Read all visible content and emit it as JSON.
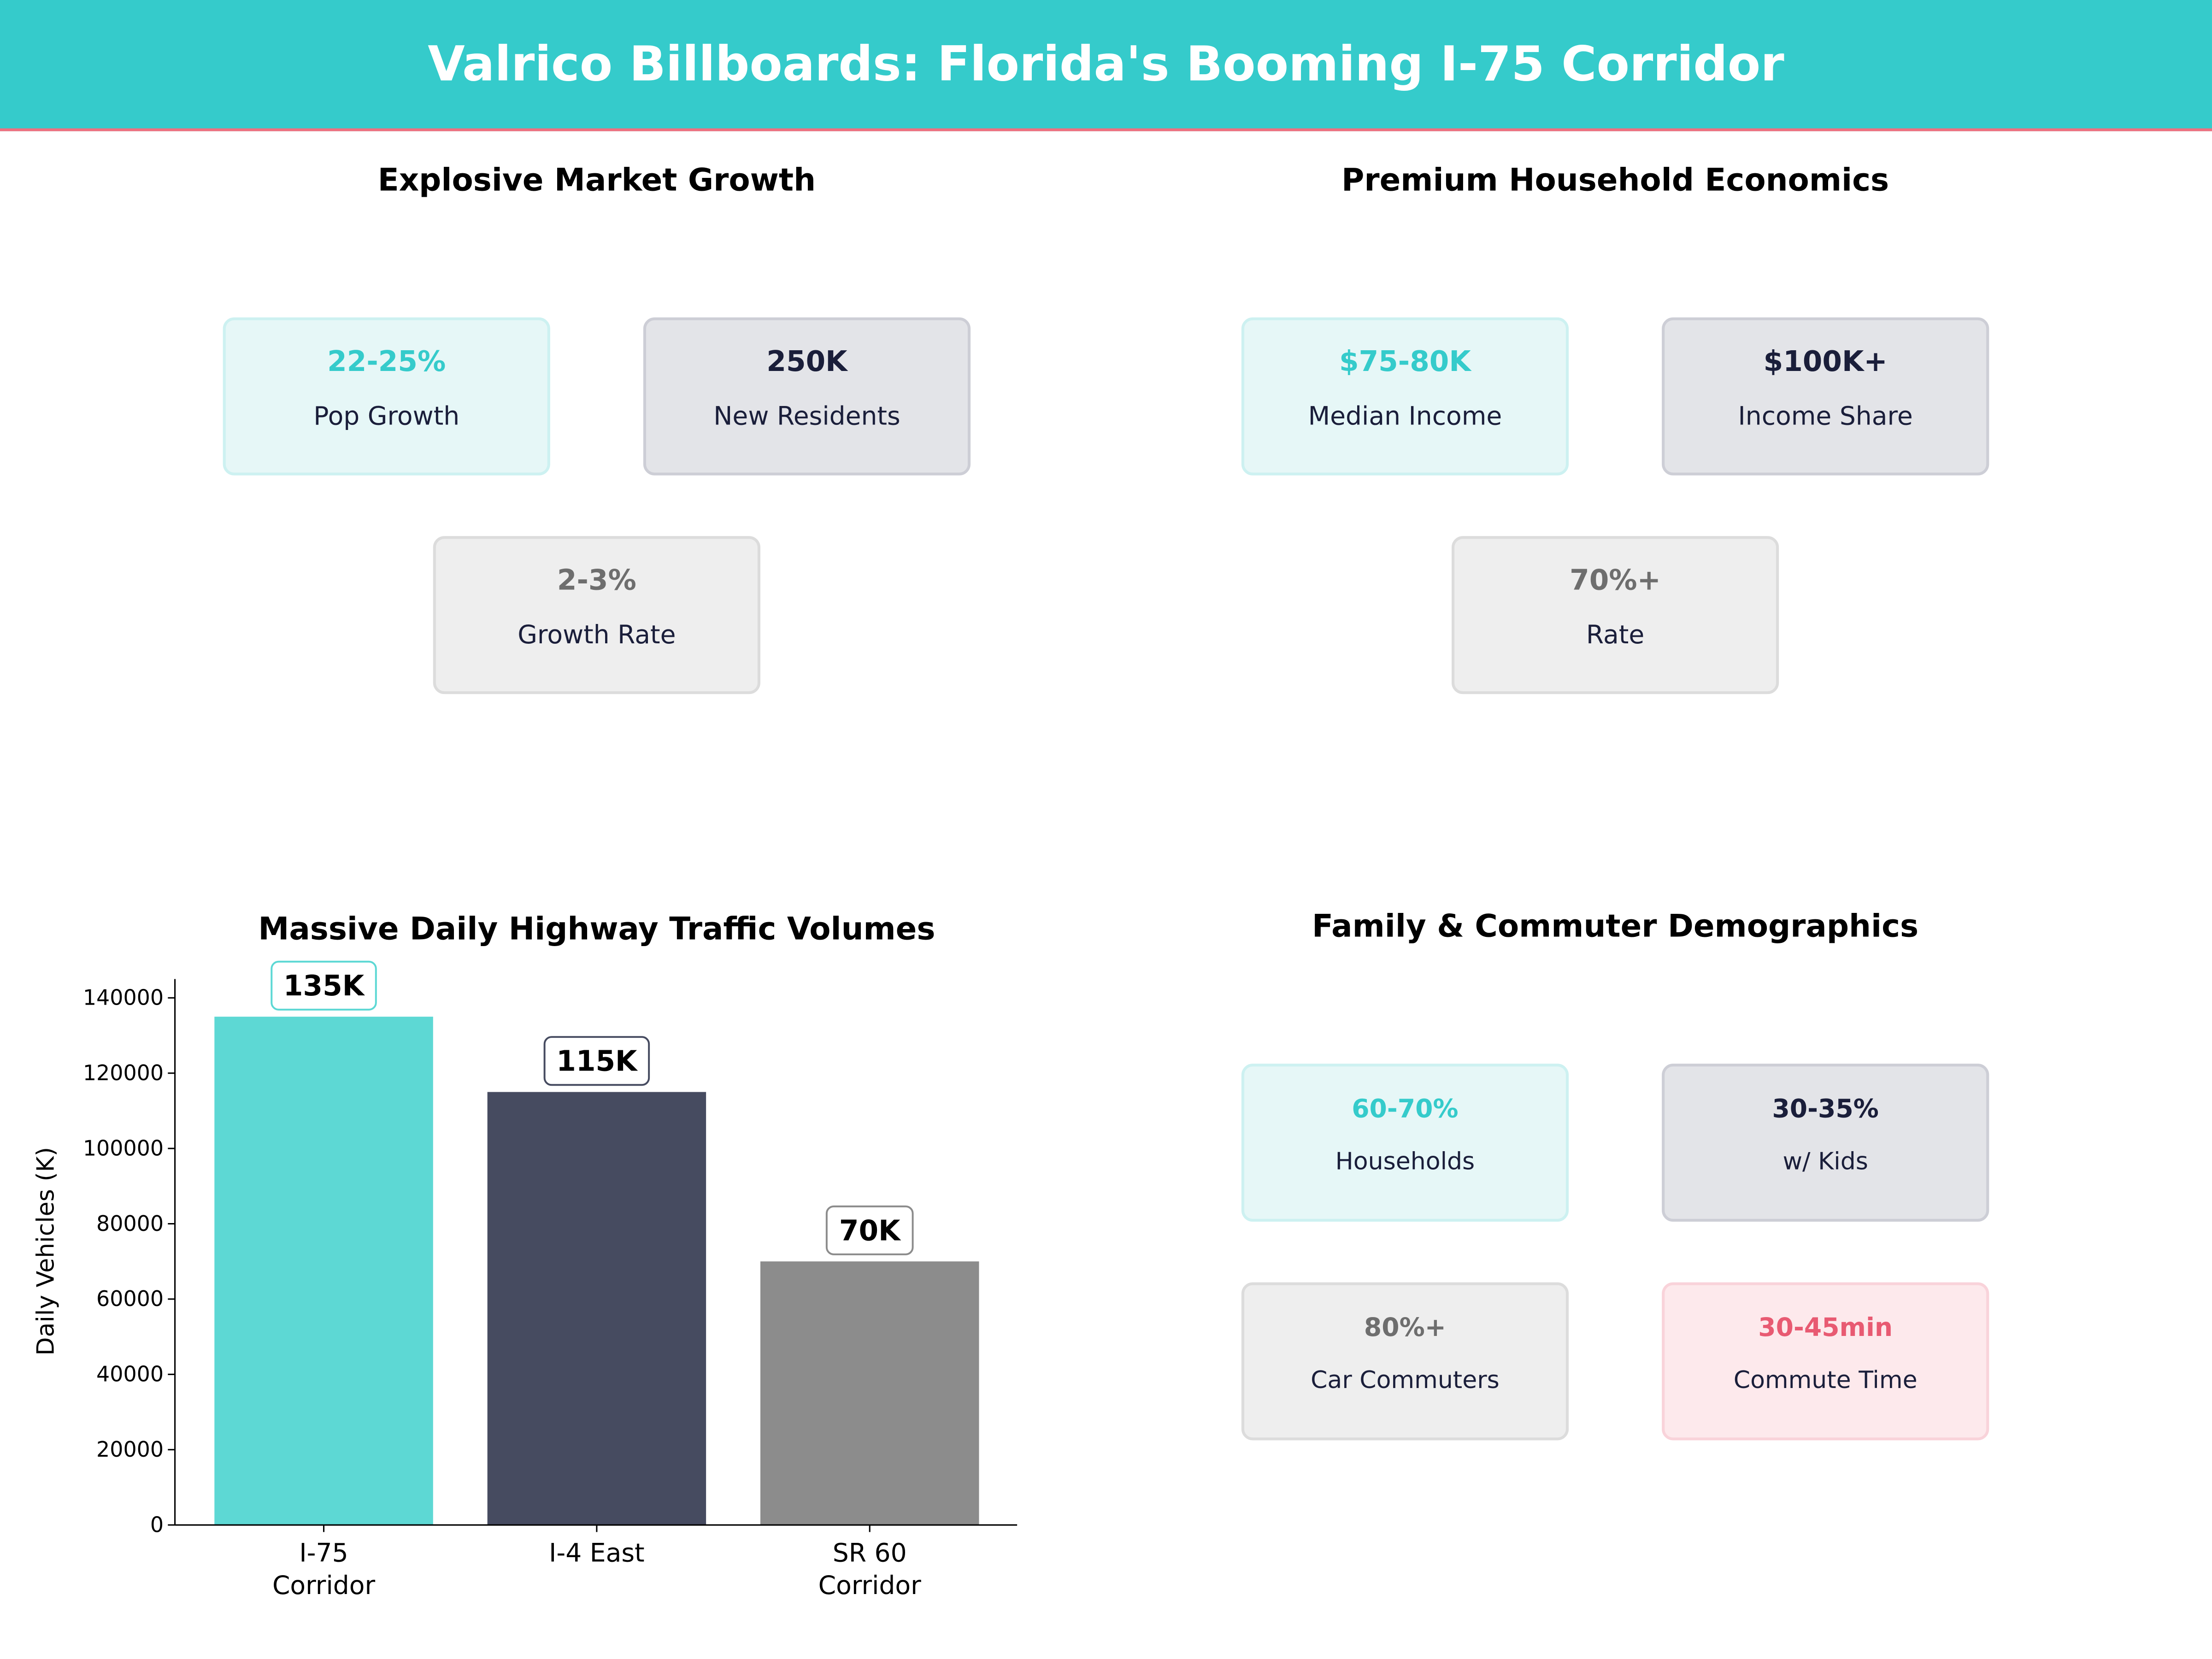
{
  "header": {
    "title": "Valrico Billboards: Florida's Booming I-75 Corridor"
  },
  "panels": {
    "growth": {
      "title": "Explosive Market Growth",
      "cards": [
        {
          "value": "22-25%",
          "label": "Pop Growth",
          "style": "teal"
        },
        {
          "value": "250K",
          "label": "New Residents",
          "style": "navy"
        },
        {
          "value": "2-3%",
          "label": "Growth Rate",
          "style": "gray"
        }
      ]
    },
    "economics": {
      "title": "Premium Household Economics",
      "cards": [
        {
          "value": "$75-80K",
          "label": "Median Income",
          "style": "teal"
        },
        {
          "value": "$100K+",
          "label": "Income Share",
          "style": "navy"
        },
        {
          "value": "70%+",
          "label": "Rate",
          "style": "gray"
        }
      ]
    },
    "demographics": {
      "title": "Family & Commuter Demographics",
      "cards": [
        {
          "value": "60-70%",
          "label": "Households",
          "style": "teal"
        },
        {
          "value": "30-35%",
          "label": "w/ Kids",
          "style": "navy"
        },
        {
          "value": "80%+",
          "label": "Car Commuters",
          "style": "gray"
        },
        {
          "value": "30-45min",
          "label": "Commute Time",
          "style": "pink"
        }
      ]
    }
  },
  "colors": {
    "teal": "#35cbcb",
    "navy": "#1a1e3a",
    "gray": "#6e6e6e",
    "pink": "#e85a72",
    "bar_teal": "#5dd8d4",
    "bar_navy": "#464b60",
    "bar_gray": "#8c8c8c"
  },
  "chart_data": {
    "type": "bar",
    "title": "Massive Daily Highway Traffic Volumes",
    "ylabel": "Daily Vehicles (K)",
    "xlabel": "",
    "categories": [
      "I-75\nCorridor",
      "I-4 East",
      "SR 60\nCorridor"
    ],
    "values": [
      135000,
      115000,
      70000
    ],
    "data_labels": [
      "135K",
      "115K",
      "70K"
    ],
    "bar_colors": [
      "#5dd8d4",
      "#464b60",
      "#8c8c8c"
    ],
    "ylim": [
      0,
      145000
    ],
    "yticks": [
      0,
      20000,
      40000,
      60000,
      80000,
      100000,
      120000,
      140000
    ],
    "grid": false
  }
}
